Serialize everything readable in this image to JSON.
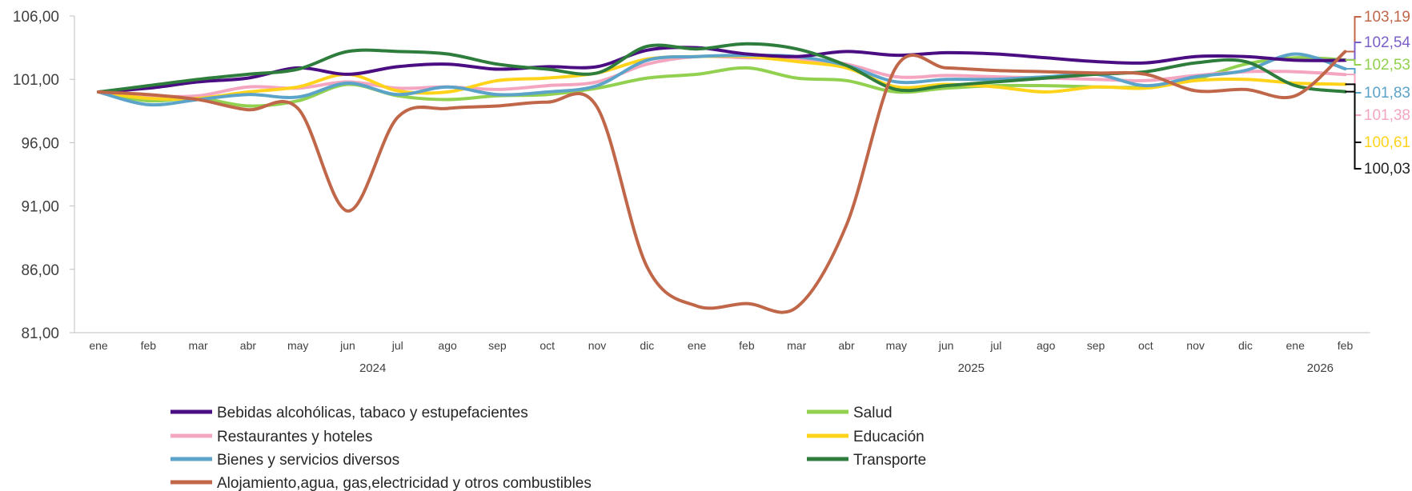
{
  "chart_data": {
    "type": "line",
    "title": "",
    "xlabel": "",
    "ylabel": "",
    "ylim": [
      81,
      106
    ],
    "y_ticks": [
      "106,00",
      "101,00",
      "96,00",
      "91,00",
      "86,00",
      "81,00"
    ],
    "y_tick_values": [
      106,
      101,
      96,
      91,
      86,
      81
    ],
    "categories": [
      "ene",
      "feb",
      "mar",
      "abr",
      "may",
      "jun",
      "jul",
      "ago",
      "sep",
      "oct",
      "nov",
      "dic",
      "ene",
      "feb",
      "mar",
      "abr",
      "may",
      "jun",
      "jul",
      "ago",
      "sep",
      "oct",
      "nov",
      "dic",
      "ene",
      "feb"
    ],
    "years": [
      {
        "label": "2024",
        "center_index": 5.5
      },
      {
        "label": "2025",
        "center_index": 17.5
      },
      {
        "label": "2026",
        "center_index": 24.5
      }
    ],
    "legend_position": "bottom",
    "grid": false,
    "series": [
      {
        "name": "Bebidas alcohólicas, tabaco y estupefacientes",
        "color": "#4b0e82",
        "end_label": "",
        "values": [
          100.0,
          100.3,
          100.8,
          101.1,
          101.9,
          101.4,
          102.0,
          102.2,
          101.8,
          102.0,
          102.0,
          103.3,
          103.5,
          103.0,
          102.8,
          103.2,
          102.9,
          103.1,
          103.0,
          102.7,
          102.4,
          102.3,
          102.8,
          102.8,
          102.5,
          102.5
        ]
      },
      {
        "name": "Salud",
        "color": "#92d050",
        "end_label": "102,53",
        "values": [
          100.0,
          99.3,
          99.5,
          98.9,
          99.3,
          100.6,
          99.7,
          99.4,
          99.7,
          99.8,
          100.3,
          101.1,
          101.4,
          101.9,
          101.1,
          100.9,
          100.0,
          100.3,
          100.5,
          100.5,
          100.4,
          100.4,
          101.0,
          102.2,
          102.7,
          102.53
        ]
      },
      {
        "name": "Restaurantes y hoteles",
        "color": "#f4a6c0",
        "end_label": "101,38",
        "values": [
          100.0,
          99.7,
          99.7,
          100.4,
          100.3,
          100.8,
          100.3,
          100.4,
          100.2,
          100.5,
          100.8,
          102.2,
          102.8,
          102.7,
          102.6,
          102.2,
          101.2,
          101.3,
          101.2,
          101.1,
          101.0,
          100.9,
          101.3,
          101.6,
          101.6,
          101.38
        ]
      },
      {
        "name": "Educación",
        "color": "#ffd31a",
        "end_label": "100,61",
        "values": [
          100.0,
          99.5,
          99.5,
          100.0,
          100.4,
          101.4,
          100.1,
          100.0,
          100.9,
          101.1,
          101.5,
          102.6,
          102.8,
          102.8,
          102.4,
          101.9,
          100.4,
          100.6,
          100.4,
          100.0,
          100.4,
          100.3,
          100.9,
          101.0,
          100.7,
          100.61
        ]
      },
      {
        "name": "Bienes y servicios diversos",
        "color": "#5ba3c8",
        "end_label": "101,83",
        "values": [
          100.0,
          99.0,
          99.4,
          99.8,
          99.6,
          100.7,
          99.8,
          100.4,
          99.8,
          100.0,
          100.5,
          102.5,
          102.8,
          102.9,
          102.8,
          102.1,
          100.8,
          101.0,
          101.0,
          101.2,
          101.4,
          100.5,
          101.2,
          101.7,
          103.0,
          101.83
        ]
      },
      {
        "name": "Transporte",
        "color": "#2e7d3c",
        "end_label": "100,03",
        "values": [
          100.0,
          100.5,
          101.0,
          101.4,
          101.8,
          103.2,
          103.2,
          103.0,
          102.2,
          101.8,
          101.5,
          103.6,
          103.4,
          103.8,
          103.4,
          102.1,
          100.2,
          100.5,
          100.8,
          101.1,
          101.4,
          101.6,
          102.3,
          102.4,
          100.5,
          100.03
        ]
      },
      {
        "name": "Alojamiento,agua, gas,electricidad y otros combustibles",
        "color": "#c0674a",
        "end_label": "103,19",
        "values": [
          100.0,
          99.8,
          99.4,
          98.6,
          98.7,
          90.6,
          98.0,
          98.7,
          98.9,
          99.2,
          98.8,
          86.2,
          83.1,
          83.3,
          83.0,
          89.5,
          102.0,
          101.9,
          101.7,
          101.6,
          101.5,
          101.4,
          100.1,
          100.2,
          99.7,
          103.19
        ]
      }
    ],
    "extra_end_labels": [
      {
        "text": "102,54",
        "color": "#7b5fc9",
        "value": 102.54
      }
    ]
  }
}
